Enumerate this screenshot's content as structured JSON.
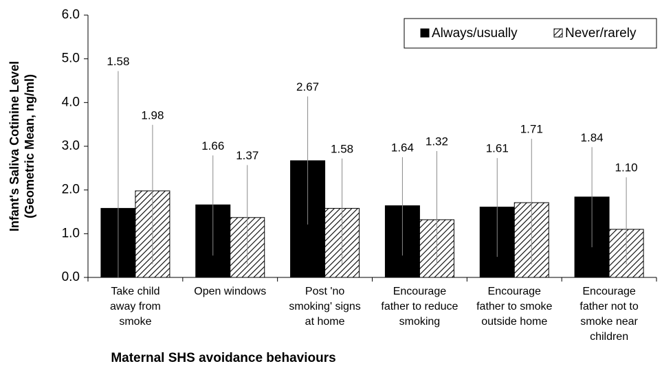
{
  "chart_data": {
    "type": "bar",
    "ylabel": [
      "Infant's Saliva Cotinine Level",
      "(Geometric Mean, ng/ml)"
    ],
    "xlabel": "Maternal SHS avoidance behaviours",
    "categories": [
      [
        "Take child",
        "away from",
        "smoke"
      ],
      [
        "Open windows"
      ],
      [
        "Post 'no",
        "smoking' signs",
        "at home"
      ],
      [
        "Encourage",
        "father to reduce",
        "smoking"
      ],
      [
        "Encourage",
        "father to smoke",
        "outside home"
      ],
      [
        "Encourage",
        "father not to",
        "smoke near",
        "children"
      ]
    ],
    "series": [
      {
        "name": "Always/usually",
        "color": "#000000",
        "values": [
          1.58,
          1.66,
          2.67,
          1.64,
          1.61,
          1.84
        ],
        "value_labels": [
          "1.58",
          "1.66",
          "2.67",
          "1.64",
          "1.61",
          "1.84"
        ],
        "lower": [
          0.0,
          0.5,
          1.21,
          0.5,
          0.47,
          0.69
        ],
        "upper": [
          4.72,
          2.79,
          4.14,
          2.75,
          2.73,
          2.98
        ]
      },
      {
        "name": "Never/rarely",
        "color": "#000000",
        "pattern": "diagonal",
        "values": [
          1.98,
          1.37,
          1.58,
          1.32,
          1.71,
          1.1
        ],
        "value_labels": [
          "1.98",
          "1.37",
          "1.58",
          "1.32",
          "1.71",
          "1.10"
        ],
        "lower": [
          0.3,
          0.3,
          0.3,
          0.3,
          0.3,
          0.3
        ],
        "upper": [
          3.49,
          2.57,
          2.72,
          2.89,
          3.17,
          2.29
        ]
      }
    ],
    "error_color": "#888888",
    "ylim": [
      0,
      6
    ],
    "yticks": [
      {
        "value": 0,
        "label": "0.0"
      },
      {
        "value": 1,
        "label": "1.0"
      },
      {
        "value": 2,
        "label": "2.0"
      },
      {
        "value": 3,
        "label": "3.0"
      },
      {
        "value": 4,
        "label": "4.0"
      },
      {
        "value": 5,
        "label": "5.0"
      },
      {
        "value": 6,
        "label": "6.0"
      }
    ],
    "legend": "top-right"
  }
}
